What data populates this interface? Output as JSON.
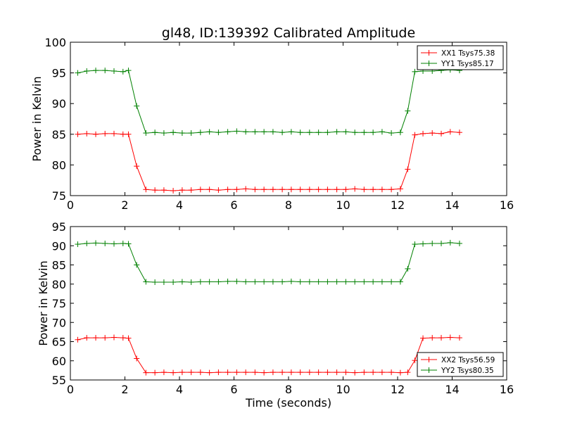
{
  "figure": {
    "title": "gl48, ID:139392 Calibrated Amplitude"
  },
  "chart_data": [
    {
      "type": "line",
      "title": "gl48, ID:139392 Calibrated Amplitude",
      "xlabel": "",
      "ylabel": "Power in Kelvin",
      "xlim": [
        0,
        16
      ],
      "ylim": [
        75,
        100
      ],
      "x_ticks": [
        "0",
        "2",
        "4",
        "6",
        "8",
        "10",
        "12",
        "14",
        "16"
      ],
      "y_ticks": [
        "75",
        "80",
        "85",
        "90",
        "95",
        "100"
      ],
      "grid": false,
      "legend_position": "top-right",
      "x": [
        0.27,
        0.6,
        0.93,
        1.27,
        1.6,
        1.93,
        2.13,
        2.43,
        2.77,
        3.1,
        3.43,
        3.77,
        4.1,
        4.43,
        4.77,
        5.1,
        5.43,
        5.77,
        6.1,
        6.43,
        6.77,
        7.1,
        7.43,
        7.77,
        8.1,
        8.43,
        8.77,
        9.1,
        9.43,
        9.77,
        10.1,
        10.43,
        10.77,
        11.1,
        11.43,
        11.77,
        12.1,
        12.37,
        12.63,
        12.93,
        13.27,
        13.6,
        13.93,
        14.27
      ],
      "series": [
        {
          "name": "XX1 Tsys75.38",
          "color": "#ff0000",
          "values": [
            85.0,
            85.1,
            85.0,
            85.1,
            85.1,
            85.0,
            85.0,
            79.8,
            76.0,
            75.9,
            75.9,
            75.8,
            75.9,
            75.9,
            76.0,
            76.0,
            75.9,
            76.0,
            76.0,
            76.1,
            76.0,
            76.0,
            76.0,
            76.0,
            76.0,
            76.0,
            76.0,
            76.0,
            76.0,
            76.0,
            76.0,
            76.1,
            76.0,
            76.0,
            76.0,
            76.0,
            76.1,
            79.3,
            84.9,
            85.1,
            85.2,
            85.1,
            85.4,
            85.3
          ]
        },
        {
          "name": "YY1 Tsys85.17",
          "color": "#008000",
          "values": [
            95.0,
            95.3,
            95.4,
            95.4,
            95.3,
            95.2,
            95.4,
            89.6,
            85.2,
            85.3,
            85.2,
            85.3,
            85.2,
            85.2,
            85.3,
            85.4,
            85.3,
            85.4,
            85.5,
            85.4,
            85.4,
            85.4,
            85.4,
            85.3,
            85.4,
            85.3,
            85.3,
            85.3,
            85.3,
            85.4,
            85.4,
            85.3,
            85.3,
            85.3,
            85.4,
            85.2,
            85.3,
            88.8,
            95.2,
            95.3,
            95.3,
            95.4,
            95.5,
            95.4
          ]
        }
      ]
    },
    {
      "type": "line",
      "title": "",
      "xlabel": "Time (seconds)",
      "ylabel": "Power in Kelvin",
      "xlim": [
        0,
        16
      ],
      "ylim": [
        55,
        95
      ],
      "x_ticks": [
        "0",
        "2",
        "4",
        "6",
        "8",
        "10",
        "12",
        "14",
        "16"
      ],
      "y_ticks": [
        "55",
        "60",
        "65",
        "70",
        "75",
        "80",
        "85",
        "90",
        "95"
      ],
      "grid": false,
      "legend_position": "bottom-right",
      "x": [
        0.27,
        0.6,
        0.93,
        1.27,
        1.6,
        1.93,
        2.13,
        2.43,
        2.77,
        3.1,
        3.43,
        3.77,
        4.1,
        4.43,
        4.77,
        5.1,
        5.43,
        5.77,
        6.1,
        6.43,
        6.77,
        7.1,
        7.43,
        7.77,
        8.1,
        8.43,
        8.77,
        9.1,
        9.43,
        9.77,
        10.1,
        10.43,
        10.77,
        11.1,
        11.43,
        11.77,
        12.1,
        12.37,
        12.63,
        12.93,
        13.27,
        13.6,
        13.93,
        14.27
      ],
      "series": [
        {
          "name": "XX2 Tsys56.59",
          "color": "#ff0000",
          "values": [
            65.5,
            66.0,
            66.0,
            66.0,
            66.1,
            66.0,
            65.9,
            60.6,
            56.9,
            56.9,
            57.0,
            56.9,
            57.0,
            57.0,
            57.0,
            56.9,
            57.0,
            57.0,
            57.0,
            57.0,
            57.0,
            56.9,
            57.0,
            57.0,
            57.0,
            57.0,
            57.0,
            57.0,
            57.0,
            57.0,
            57.0,
            56.9,
            57.0,
            57.0,
            57.0,
            57.0,
            56.9,
            57.0,
            60.1,
            65.9,
            66.0,
            66.0,
            66.1,
            66.0
          ]
        },
        {
          "name": "YY2 Tsys80.35",
          "color": "#008000",
          "values": [
            90.4,
            90.6,
            90.7,
            90.6,
            90.5,
            90.6,
            90.5,
            85.0,
            80.6,
            80.5,
            80.5,
            80.5,
            80.6,
            80.5,
            80.6,
            80.6,
            80.6,
            80.7,
            80.7,
            80.6,
            80.6,
            80.6,
            80.6,
            80.6,
            80.7,
            80.6,
            80.6,
            80.6,
            80.6,
            80.6,
            80.6,
            80.6,
            80.6,
            80.6,
            80.6,
            80.6,
            80.6,
            84.0,
            90.4,
            90.5,
            90.6,
            90.6,
            90.8,
            90.6
          ]
        }
      ]
    }
  ]
}
